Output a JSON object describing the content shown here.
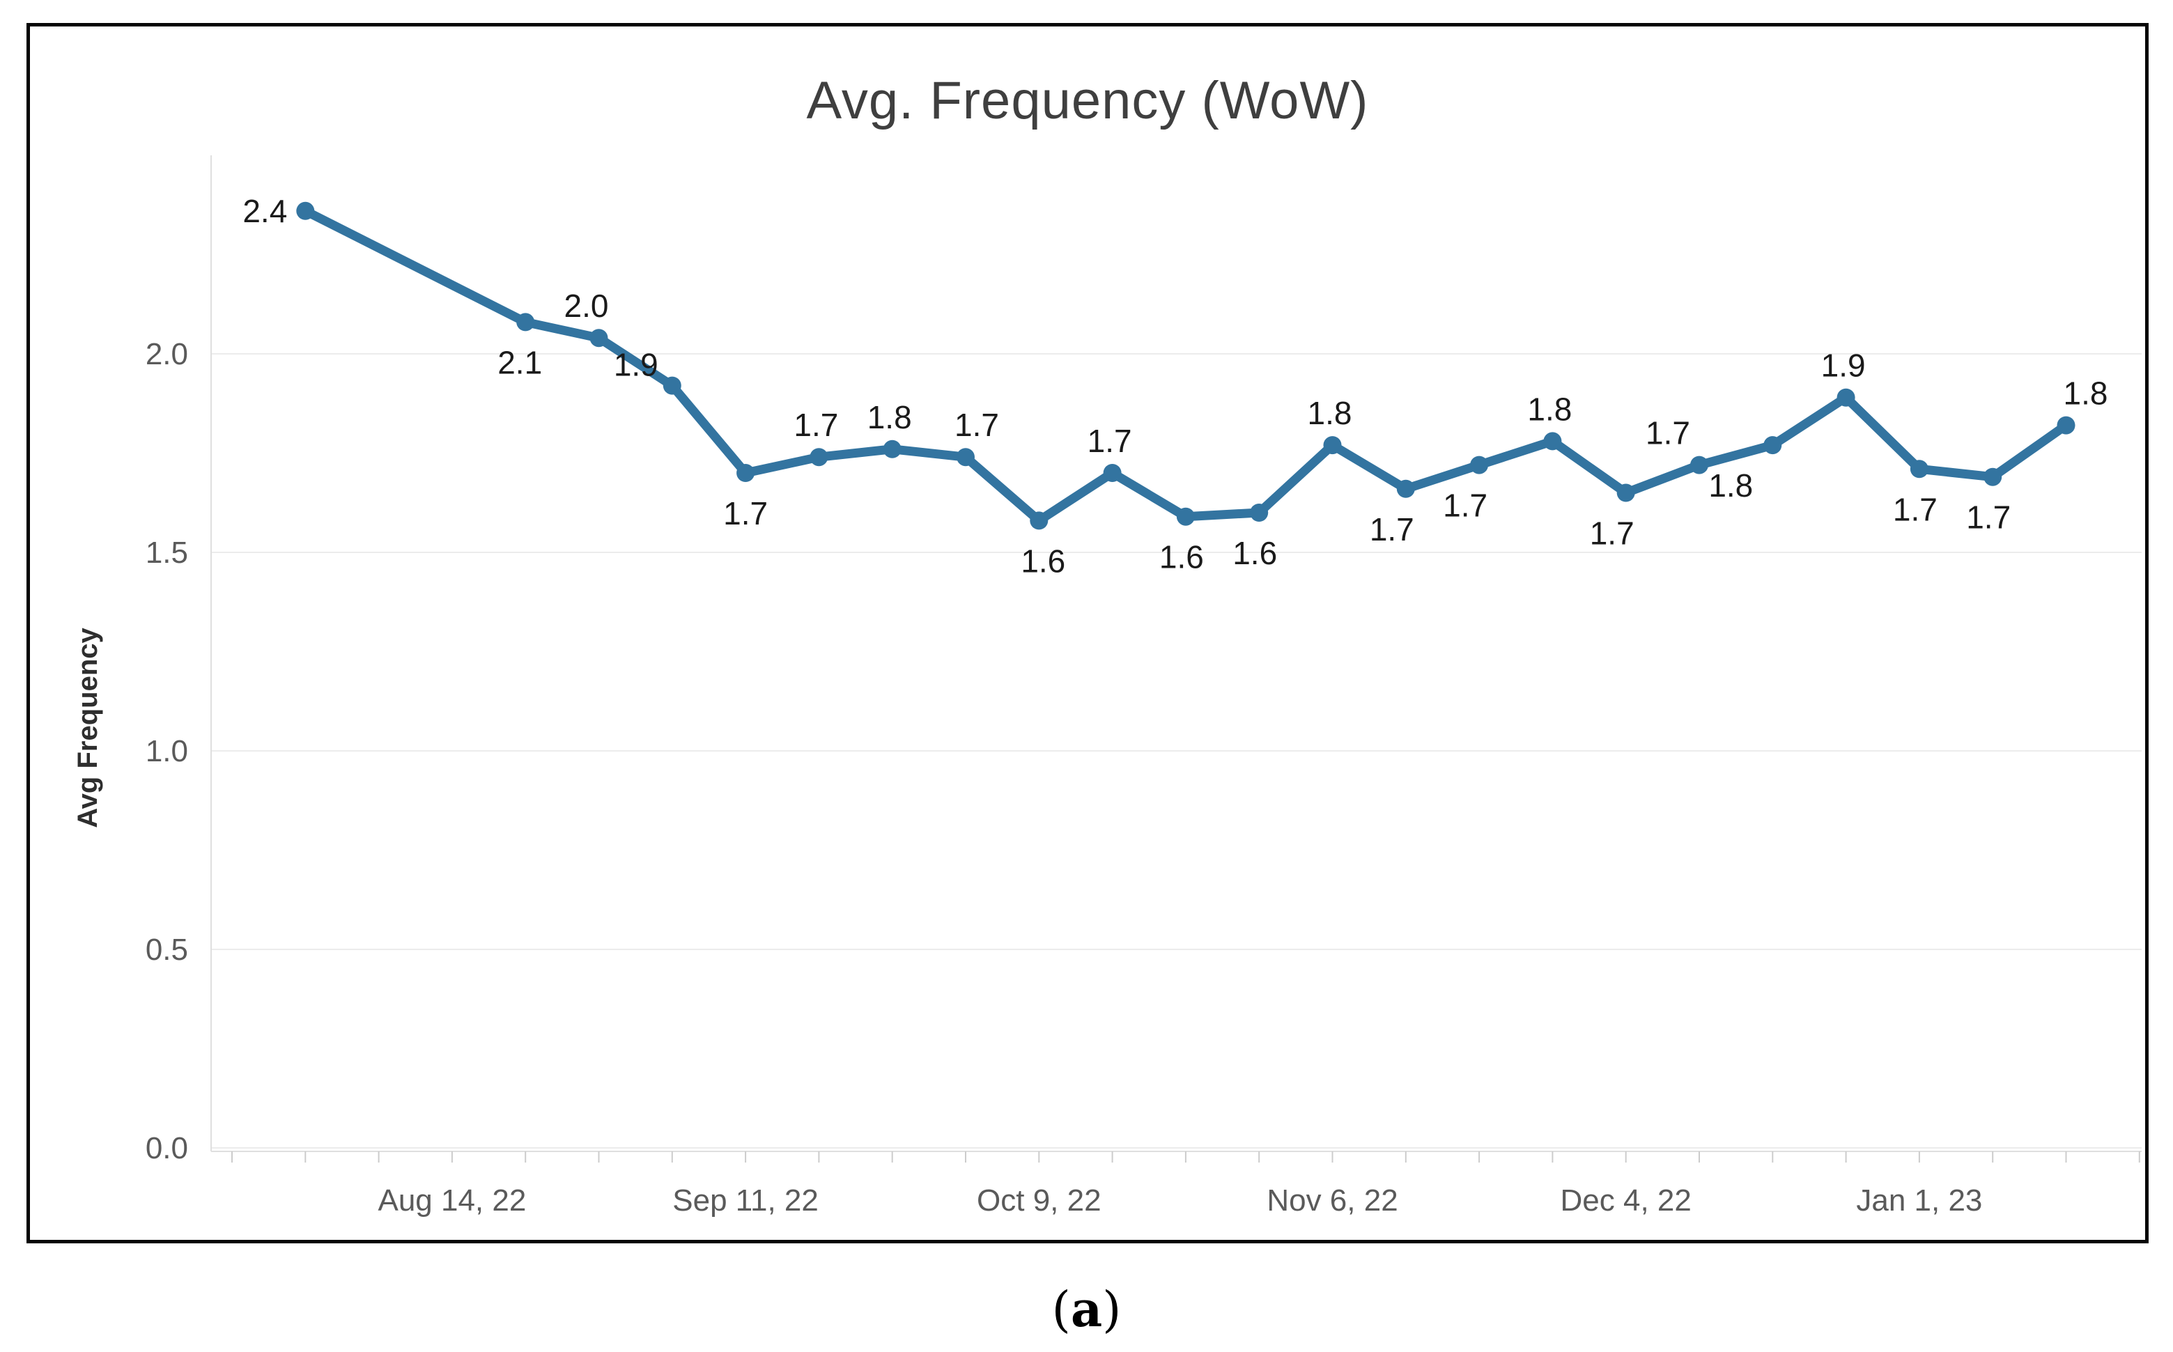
{
  "figure": {
    "caption": {
      "open": "(",
      "letter": "a",
      "close": ")"
    }
  },
  "chart_data": {
    "type": "line",
    "title": "Avg. Frequency (WoW)",
    "xlabel": "",
    "ylabel": "Avg Frequency",
    "y_range": [
      0,
      2.5
    ],
    "grid": true,
    "legend_position": "none",
    "y_ticks": [
      {
        "value": 0.0,
        "label": "0.0"
      },
      {
        "value": 0.5,
        "label": "0.5"
      },
      {
        "value": 1.0,
        "label": "1.0"
      },
      {
        "value": 1.5,
        "label": "1.5"
      },
      {
        "value": 2.0,
        "label": "2.0"
      }
    ],
    "x_ticks": [
      {
        "week": 3,
        "label": "Aug 14, 22"
      },
      {
        "week": 7,
        "label": "Sep 11, 22"
      },
      {
        "week": 11,
        "label": "Oct 9, 22"
      },
      {
        "week": 15,
        "label": "Nov 6, 22"
      },
      {
        "week": 19,
        "label": "Dec 4, 22"
      },
      {
        "week": 23,
        "label": "Jan 1, 23"
      }
    ],
    "minor_tick_week_start": 0,
    "minor_tick_week_end": 26,
    "series": [
      {
        "name": "Avg Frequency",
        "points": [
          {
            "week": 1,
            "value": 2.36,
            "label": "2.4",
            "side": "left",
            "dx": 0
          },
          {
            "week": 4,
            "value": 2.08,
            "label": "2.1",
            "side": "below",
            "dx": -8
          },
          {
            "week": 5,
            "value": 2.04,
            "label": "2.0",
            "side": "above",
            "dx": -18
          },
          {
            "week": 6,
            "value": 1.92,
            "label": "1.9",
            "side": "above",
            "dx": -52,
            "dy": 16
          },
          {
            "week": 7,
            "value": 1.7,
            "label": "1.7",
            "side": "below",
            "dx": 0
          },
          {
            "week": 8,
            "value": 1.74,
            "label": "1.7",
            "side": "above",
            "dx": -4
          },
          {
            "week": 9,
            "value": 1.76,
            "label": "1.8",
            "side": "above",
            "dx": -4
          },
          {
            "week": 10,
            "value": 1.74,
            "label": "1.7",
            "side": "above",
            "dx": 16
          },
          {
            "week": 11,
            "value": 1.58,
            "label": "1.6",
            "side": "below",
            "dx": 6
          },
          {
            "week": 12,
            "value": 1.7,
            "label": "1.7",
            "side": "above",
            "dx": -4
          },
          {
            "week": 13,
            "value": 1.59,
            "label": "1.6",
            "side": "below",
            "dx": -6
          },
          {
            "week": 14,
            "value": 1.6,
            "label": "1.6",
            "side": "below",
            "dx": -6
          },
          {
            "week": 15,
            "value": 1.77,
            "label": "1.8",
            "side": "above",
            "dx": -4
          },
          {
            "week": 16,
            "value": 1.66,
            "label": "1.7",
            "side": "below",
            "dx": -20
          },
          {
            "week": 17,
            "value": 1.72,
            "label": "1.7",
            "side": "below",
            "dx": -20
          },
          {
            "week": 18,
            "value": 1.78,
            "label": "1.8",
            "side": "above",
            "dx": -4
          },
          {
            "week": 19,
            "value": 1.65,
            "label": "1.7",
            "side": "below",
            "dx": -20
          },
          {
            "week": 20,
            "value": 1.72,
            "label": "1.7",
            "side": "above",
            "dx": -45
          },
          {
            "week": 21,
            "value": 1.77,
            "label": "1.8",
            "side": "below",
            "dx": -60
          },
          {
            "week": 22,
            "value": 1.89,
            "label": "1.9",
            "side": "above",
            "dx": -4
          },
          {
            "week": 23,
            "value": 1.71,
            "label": "1.7",
            "side": "below",
            "dx": -6
          },
          {
            "week": 24,
            "value": 1.69,
            "label": "1.7",
            "side": "below",
            "dx": -6
          },
          {
            "week": 25,
            "value": 1.82,
            "label": "1.8",
            "side": "above",
            "dx": 28
          }
        ]
      }
    ],
    "colors": {
      "line": "#3374a0",
      "point": "#3374a0",
      "point_label": "#1a1a1a",
      "tick_label": "#5a5a5a",
      "grid_line": "#ececec",
      "axis_line": "#dfdfdf",
      "minor_tick": "#cccccc",
      "title": "#3f3f3f",
      "y_axis_title": "#2e2e2e"
    }
  }
}
